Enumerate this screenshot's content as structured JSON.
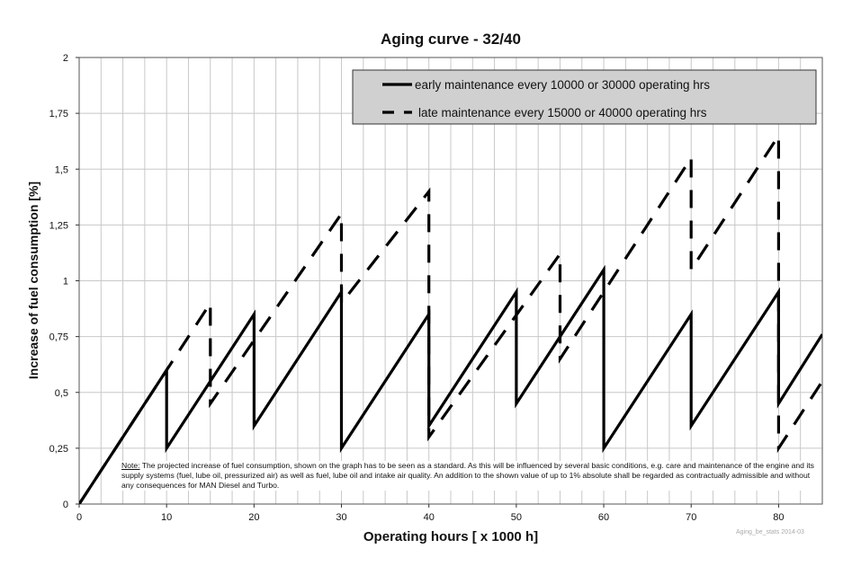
{
  "chart_data": {
    "type": "line",
    "title": "Aging curve - 32/40",
    "xlabel": "Operating hours [ x 1000 h]",
    "ylabel": "Increase  of  fuel consumption [%]",
    "xlim": [
      0,
      85
    ],
    "ylim": [
      0,
      2
    ],
    "xticks": [
      0,
      10,
      20,
      30,
      40,
      50,
      60,
      70,
      80
    ],
    "xtick_labels": [
      "0",
      "10",
      "20",
      "30",
      "40",
      "50",
      "60",
      "70",
      "80"
    ],
    "yticks": [
      0,
      0.25,
      0.5,
      0.75,
      1,
      1.25,
      1.5,
      1.75,
      2
    ],
    "ytick_labels": [
      "0",
      "0,25",
      "0,5",
      "0,75",
      "1",
      "1,25",
      "1,5",
      "1,75",
      "2"
    ],
    "grid": true,
    "legend_position": "top-right",
    "series": [
      {
        "name": "early maintenance every 10000 or 30000 operating hrs",
        "style": "solid",
        "x": [
          0,
          10,
          10,
          20,
          20,
          30,
          30,
          40,
          40,
          50,
          50,
          60,
          60,
          70,
          70,
          80,
          80,
          85
        ],
        "y": [
          0,
          0.6,
          0.25,
          0.85,
          0.35,
          0.95,
          0.25,
          0.85,
          0.35,
          0.95,
          0.45,
          1.05,
          0.25,
          0.85,
          0.35,
          0.95,
          0.45,
          0.76
        ]
      },
      {
        "name": "late maintenance every 15000 or 40000 operating hrs",
        "style": "dashed",
        "x": [
          0,
          15,
          15,
          30,
          30,
          40,
          40,
          55,
          55,
          70,
          70,
          80,
          80,
          85
        ],
        "y": [
          0,
          0.9,
          0.45,
          1.3,
          0.9,
          1.4,
          0.3,
          1.12,
          0.65,
          1.55,
          1.05,
          1.65,
          0.25,
          0.55
        ]
      }
    ]
  },
  "note": {
    "label": "Note:",
    "text": " The projected increase of fuel consumption, shown on the graph has to be seen as a standard. As this will be influenced by several basic conditions, e.g. care and maintenance of the engine and its supply systems (fuel, lube oil, pressurized air) as well as fuel, lube oil and intake air quality. An addition to the shown value of up to 1% absolute shall be regarded as contractually admissible and without any consequences for MAN Diesel and Turbo."
  },
  "stamp": "Aging_be_stats 2014-03",
  "colors": {
    "line": "#000000",
    "grid": "#c8c8c8",
    "legend_bg": "#d0d0d0",
    "plot_bg": "#ffffff"
  }
}
